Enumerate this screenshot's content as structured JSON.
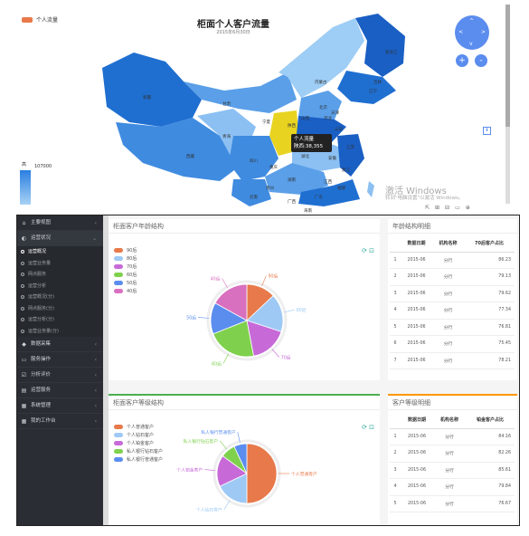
{
  "map": {
    "title": "柜面个人客户流量",
    "subtitle": "2015年6月30日",
    "legend_label": "个人流量",
    "scale_high": "高",
    "scale_value": "107000",
    "tooltip": {
      "line1": "个人流量",
      "line2": "陕西:38,355"
    },
    "region_labels": [
      "内蒙古",
      "北京",
      "天津",
      "甘肃",
      "青海",
      "山西",
      "河北",
      "山东",
      "西藏",
      "四川",
      "湖北",
      "江苏",
      "浙江",
      "云南",
      "安徽",
      "陕西",
      "广东",
      "福建",
      "江西",
      "湖南",
      "辽宁",
      "吉林",
      "黑龙江",
      "新疆",
      "宁夏",
      "重庆",
      "贵州",
      "广西",
      "海南"
    ],
    "nav": {
      "up": "^",
      "down": "v",
      "left": "<",
      "right": ">",
      "zoom_in": "+",
      "zoom_out": "-"
    },
    "save_icon": "save-icon",
    "watermark": [
      "激活 Windows",
      "转到\"电脑设置\"以激活 Windows。"
    ],
    "colors": {
      "dark": "#1a5fc4",
      "mid": "#3f8be0",
      "light": "#8cc0f2",
      "highlight": "#e8d320",
      "legend": "#e8794a"
    }
  },
  "sidebar": {
    "items": [
      {
        "label": "主要视图",
        "glyph": "⌂"
      },
      {
        "label": "运营状况",
        "glyph": "◐",
        "active": true
      },
      {
        "label": "数据采集",
        "glyph": "◆"
      },
      {
        "label": "服务操作",
        "glyph": "▭"
      },
      {
        "label": "分析评价",
        "glyph": "☑"
      },
      {
        "label": "运营服务",
        "glyph": "▤"
      },
      {
        "label": "系统管理",
        "glyph": "▦"
      },
      {
        "label": "我的工作台",
        "glyph": "▦"
      }
    ],
    "sub_items": [
      "运营概况",
      "运营业务量",
      "网点服务",
      "运营分析",
      "运营概况(分)",
      "网点服务(分)",
      "运营分析(分)",
      "运营业务量(分)"
    ]
  },
  "age_panel": {
    "title": "柜面客户年龄结构",
    "legend": [
      "90后",
      "80后",
      "70后",
      "60后",
      "50后",
      "40后"
    ],
    "slice_labels": [
      "90后",
      "80后",
      "70后",
      "60后",
      "50后",
      "40后"
    ]
  },
  "grade_panel": {
    "title": "柜面客户等级结构",
    "legend": [
      "个人普通客户",
      "个人钻石客户",
      "个人铂金客户",
      "私人银行钻石客户",
      "私人银行普通客户"
    ],
    "slice_labels": [
      "个人普通客户",
      "个人钻石客户",
      "个人铂金客户",
      "私人银行钻石客户",
      "私人银行普通客户"
    ]
  },
  "age_table": {
    "title": "年龄结构明细",
    "headers": [
      "",
      "数据日期",
      "机构名称",
      "70后客户占比"
    ],
    "rows": [
      [
        "1",
        "2015-06",
        "分行",
        "86.23"
      ],
      [
        "2",
        "2015-06",
        "分行",
        "79.13"
      ],
      [
        "3",
        "2015-06",
        "分行",
        "79.62"
      ],
      [
        "4",
        "2015-06",
        "分行",
        "77.34"
      ],
      [
        "5",
        "2015-06",
        "分行",
        "76.81"
      ],
      [
        "6",
        "2015-06",
        "分行",
        "75.45"
      ],
      [
        "7",
        "2015-06",
        "分行",
        "78.21"
      ]
    ]
  },
  "grade_table": {
    "title": "客户等级明细",
    "headers": [
      "",
      "数据日期",
      "机构名称",
      "铂金客户占比"
    ],
    "rows": [
      [
        "1",
        "2015-06",
        "分行",
        "84.16"
      ],
      [
        "2",
        "2015-06",
        "分行",
        "82.26"
      ],
      [
        "3",
        "2015-06",
        "分行",
        "85.61"
      ],
      [
        "4",
        "2015-06",
        "分行",
        "79.84"
      ],
      [
        "5",
        "2015-06",
        "分行",
        "76.67"
      ]
    ]
  },
  "chart_data": [
    {
      "type": "pie",
      "title": "柜面客户年龄结构",
      "categories": [
        "90后",
        "80后",
        "70后",
        "60后",
        "50后",
        "40后"
      ],
      "values": [
        13,
        17,
        17,
        22,
        14,
        17
      ],
      "colors": [
        "#e8794a",
        "#9ec9f5",
        "#c76ad8",
        "#7fd14d",
        "#5b8def",
        "#d96fbf"
      ]
    },
    {
      "type": "pie",
      "title": "柜面客户等级结构",
      "categories": [
        "个人普通客户",
        "个人钻石客户",
        "个人铂金客户",
        "私人银行钻石客户",
        "私人银行普通客户"
      ],
      "values": [
        50,
        18,
        17,
        8,
        7
      ],
      "colors": [
        "#e8794a",
        "#9ec9f5",
        "#c76ad8",
        "#7fd14d",
        "#5b8def"
      ]
    }
  ]
}
